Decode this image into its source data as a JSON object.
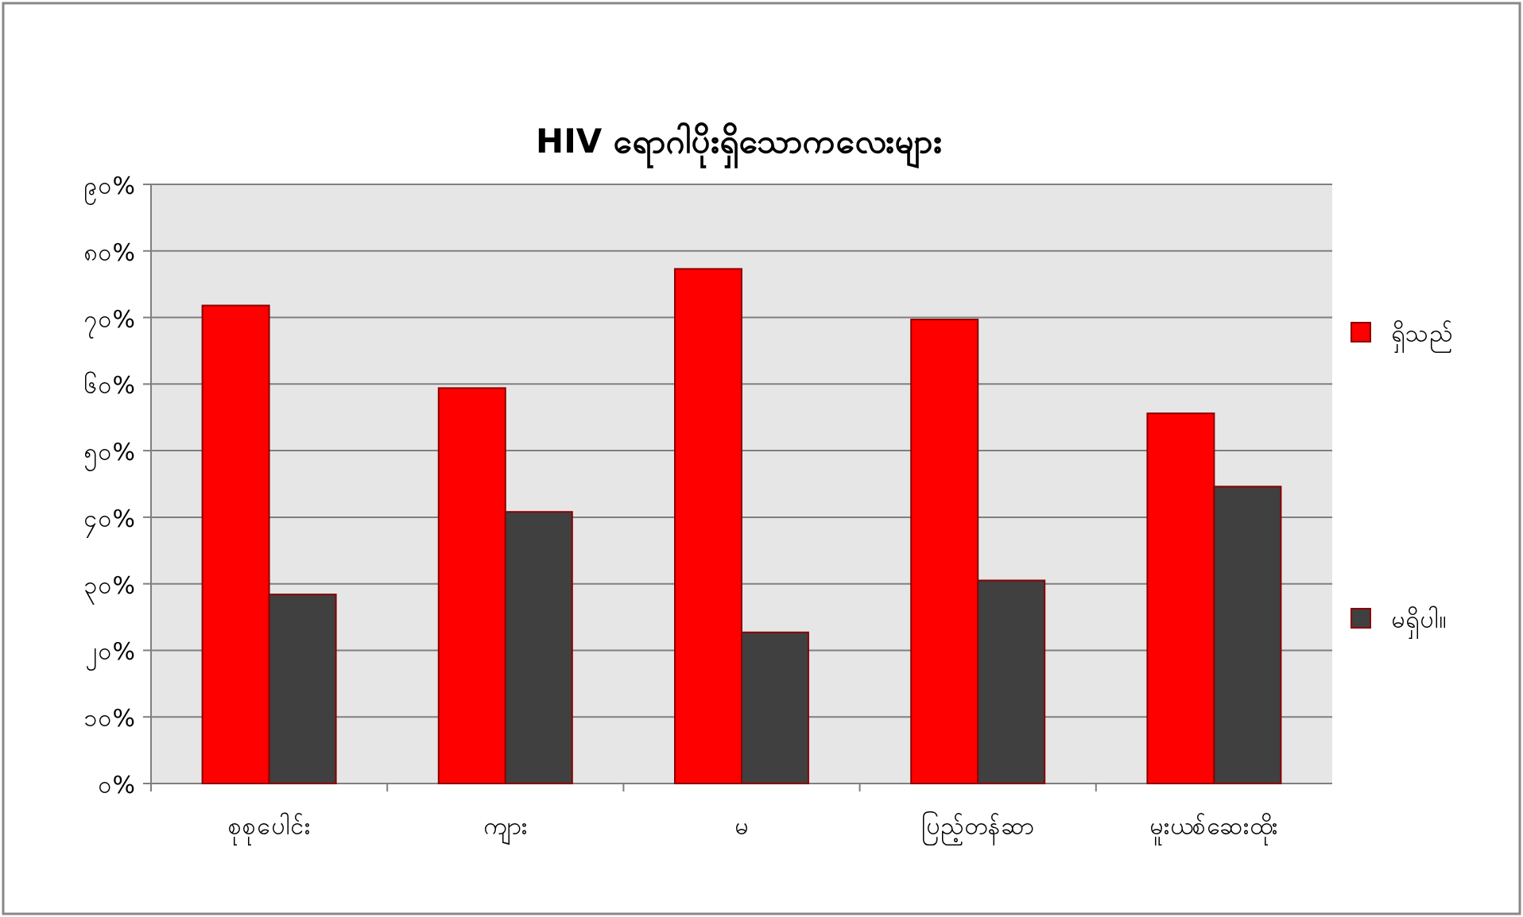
{
  "chart_data": {
    "type": "bar",
    "title": "HIV  ရောဂါပိုးရှိသောကလေးများ",
    "categories": [
      "စုစုပေါင်း",
      "ကျား",
      "မ",
      "ပြည့်တန်ဆာ",
      "မူးယစ်ဆေးထိုး"
    ],
    "series": [
      {
        "name": "ရှိသည်",
        "color": "#ff0000",
        "values": [
          71.8,
          59.4,
          77.3,
          69.7,
          55.6
        ]
      },
      {
        "name": "မရှိပါ။",
        "color": "#404040",
        "values": [
          28.4,
          40.8,
          22.7,
          30.5,
          44.6
        ]
      }
    ],
    "ylim": [
      0,
      90
    ],
    "yticks": [
      {
        "value": 0,
        "label": "၀%"
      },
      {
        "value": 10,
        "label": "၁၀%"
      },
      {
        "value": 20,
        "label": "၂၀%"
      },
      {
        "value": 30,
        "label": "၃၀%"
      },
      {
        "value": 40,
        "label": "၄၀%"
      },
      {
        "value": 50,
        "label": "၅၀%"
      },
      {
        "value": 60,
        "label": "၆၀%"
      },
      {
        "value": 70,
        "label": "၇၀%"
      },
      {
        "value": 80,
        "label": "၈၀%"
      },
      {
        "value": 90,
        "label": "၉၀%"
      }
    ],
    "grid": "y",
    "legend": "right"
  }
}
